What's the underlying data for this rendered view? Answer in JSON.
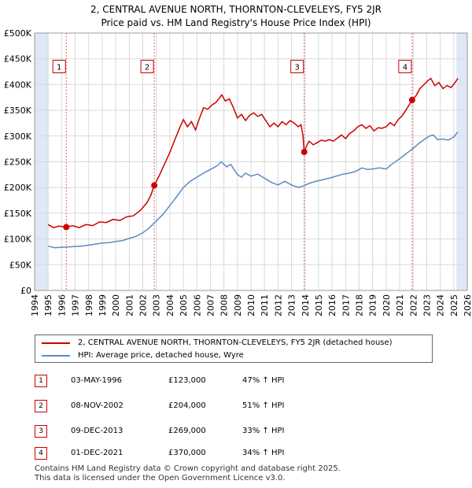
{
  "title_line1": "2, CENTRAL AVENUE NORTH, THORNTON-CLEVELEYS, FY5 2JR",
  "title_line2": "Price paid vs. HM Land Registry's House Price Index (HPI)",
  "colors": {
    "price_line": "#cc0000",
    "hpi_line": "#5b8bc4",
    "vline": "#e06666",
    "shade": "#dfe8f5",
    "grid": "#d9d9d9"
  },
  "chart_data": {
    "type": "line",
    "xlim": [
      1994,
      2026
    ],
    "ylim": [
      0,
      500000
    ],
    "x_ticks": [
      1994,
      1995,
      1996,
      1997,
      1998,
      1999,
      2000,
      2001,
      2002,
      2003,
      2004,
      2005,
      2006,
      2007,
      2008,
      2009,
      2010,
      2011,
      2012,
      2013,
      2014,
      2015,
      2016,
      2017,
      2018,
      2019,
      2020,
      2021,
      2022,
      2023,
      2024,
      2025,
      2026
    ],
    "y_ticks": [
      0,
      50000,
      100000,
      150000,
      200000,
      250000,
      300000,
      350000,
      400000,
      450000,
      500000
    ],
    "y_tick_labels": [
      "£0",
      "£50K",
      "£100K",
      "£150K",
      "£200K",
      "£250K",
      "£300K",
      "£350K",
      "£400K",
      "£450K",
      "£500K"
    ],
    "shaded_ranges": [
      [
        1994,
        1995.0
      ],
      [
        2025.2,
        2026
      ]
    ],
    "series": [
      {
        "name": "2, CENTRAL AVENUE NORTH, THORNTON-CLEVELEYS, FY5 2JR (detached house)",
        "color": "#cc0000",
        "points": [
          [
            1995.0,
            128000
          ],
          [
            1995.4,
            122000
          ],
          [
            1995.8,
            125000
          ],
          [
            1996.34,
            123000
          ],
          [
            1996.8,
            126000
          ],
          [
            1997.3,
            122000
          ],
          [
            1997.8,
            128000
          ],
          [
            1998.3,
            126000
          ],
          [
            1998.8,
            133000
          ],
          [
            1999.3,
            132000
          ],
          [
            1999.8,
            138000
          ],
          [
            2000.3,
            136000
          ],
          [
            2000.8,
            143000
          ],
          [
            2001.3,
            145000
          ],
          [
            2001.8,
            155000
          ],
          [
            2002.3,
            170000
          ],
          [
            2002.6,
            185000
          ],
          [
            2002.85,
            204000
          ],
          [
            2003.2,
            222000
          ],
          [
            2003.6,
            245000
          ],
          [
            2004.0,
            268000
          ],
          [
            2004.4,
            295000
          ],
          [
            2004.8,
            320000
          ],
          [
            2005.0,
            332000
          ],
          [
            2005.3,
            318000
          ],
          [
            2005.6,
            328000
          ],
          [
            2005.9,
            312000
          ],
          [
            2006.2,
            335000
          ],
          [
            2006.5,
            355000
          ],
          [
            2006.8,
            352000
          ],
          [
            2007.1,
            360000
          ],
          [
            2007.4,
            365000
          ],
          [
            2007.7,
            375000
          ],
          [
            2007.85,
            380000
          ],
          [
            2008.1,
            368000
          ],
          [
            2008.4,
            372000
          ],
          [
            2008.7,
            355000
          ],
          [
            2009.0,
            335000
          ],
          [
            2009.3,
            342000
          ],
          [
            2009.6,
            330000
          ],
          [
            2009.9,
            340000
          ],
          [
            2010.2,
            345000
          ],
          [
            2010.5,
            338000
          ],
          [
            2010.8,
            342000
          ],
          [
            2011.1,
            330000
          ],
          [
            2011.4,
            318000
          ],
          [
            2011.7,
            325000
          ],
          [
            2012.0,
            318000
          ],
          [
            2012.3,
            328000
          ],
          [
            2012.6,
            322000
          ],
          [
            2012.9,
            330000
          ],
          [
            2013.2,
            325000
          ],
          [
            2013.5,
            318000
          ],
          [
            2013.7,
            322000
          ],
          [
            2013.85,
            300000
          ],
          [
            2013.94,
            269000
          ],
          [
            2014.1,
            280000
          ],
          [
            2014.3,
            290000
          ],
          [
            2014.6,
            283000
          ],
          [
            2014.9,
            287000
          ],
          [
            2015.2,
            292000
          ],
          [
            2015.5,
            290000
          ],
          [
            2015.8,
            293000
          ],
          [
            2016.1,
            290000
          ],
          [
            2016.4,
            296000
          ],
          [
            2016.7,
            302000
          ],
          [
            2017.0,
            295000
          ],
          [
            2017.3,
            305000
          ],
          [
            2017.6,
            310000
          ],
          [
            2017.9,
            318000
          ],
          [
            2018.2,
            322000
          ],
          [
            2018.5,
            315000
          ],
          [
            2018.8,
            320000
          ],
          [
            2019.1,
            310000
          ],
          [
            2019.4,
            316000
          ],
          [
            2019.7,
            315000
          ],
          [
            2020.0,
            318000
          ],
          [
            2020.3,
            326000
          ],
          [
            2020.6,
            320000
          ],
          [
            2020.9,
            332000
          ],
          [
            2021.2,
            340000
          ],
          [
            2021.5,
            352000
          ],
          [
            2021.92,
            370000
          ],
          [
            2022.2,
            378000
          ],
          [
            2022.5,
            392000
          ],
          [
            2022.8,
            400000
          ],
          [
            2023.1,
            408000
          ],
          [
            2023.3,
            412000
          ],
          [
            2023.6,
            398000
          ],
          [
            2023.9,
            404000
          ],
          [
            2024.2,
            392000
          ],
          [
            2024.5,
            398000
          ],
          [
            2024.8,
            394000
          ],
          [
            2025.1,
            404000
          ],
          [
            2025.3,
            412000
          ]
        ]
      },
      {
        "name": "HPI: Average price, detached house, Wyre",
        "color": "#5b8bc4",
        "points": [
          [
            1995.0,
            86000
          ],
          [
            1995.5,
            83000
          ],
          [
            1996.0,
            84000
          ],
          [
            1996.5,
            84500
          ],
          [
            1997.0,
            85500
          ],
          [
            1997.5,
            86000
          ],
          [
            1998.0,
            88000
          ],
          [
            1998.5,
            90000
          ],
          [
            1999.0,
            92000
          ],
          [
            1999.5,
            93000
          ],
          [
            2000.0,
            95000
          ],
          [
            2000.5,
            97000
          ],
          [
            2001.0,
            101000
          ],
          [
            2001.5,
            105000
          ],
          [
            2002.0,
            112000
          ],
          [
            2002.5,
            122000
          ],
          [
            2003.0,
            135000
          ],
          [
            2003.5,
            148000
          ],
          [
            2004.0,
            165000
          ],
          [
            2004.5,
            182000
          ],
          [
            2005.0,
            200000
          ],
          [
            2005.5,
            212000
          ],
          [
            2006.0,
            220000
          ],
          [
            2006.5,
            228000
          ],
          [
            2007.0,
            235000
          ],
          [
            2007.5,
            242000
          ],
          [
            2007.8,
            250000
          ],
          [
            2008.2,
            240000
          ],
          [
            2008.5,
            245000
          ],
          [
            2009.0,
            225000
          ],
          [
            2009.3,
            220000
          ],
          [
            2009.6,
            228000
          ],
          [
            2010.0,
            222000
          ],
          [
            2010.5,
            226000
          ],
          [
            2011.0,
            218000
          ],
          [
            2011.5,
            210000
          ],
          [
            2012.0,
            205000
          ],
          [
            2012.5,
            212000
          ],
          [
            2013.0,
            205000
          ],
          [
            2013.5,
            200000
          ],
          [
            2013.9,
            203000
          ],
          [
            2014.3,
            208000
          ],
          [
            2014.8,
            212000
          ],
          [
            2015.3,
            215000
          ],
          [
            2015.8,
            218000
          ],
          [
            2016.3,
            222000
          ],
          [
            2016.8,
            226000
          ],
          [
            2017.3,
            228000
          ],
          [
            2017.8,
            232000
          ],
          [
            2018.2,
            238000
          ],
          [
            2018.6,
            235000
          ],
          [
            2019.0,
            236000
          ],
          [
            2019.5,
            238000
          ],
          [
            2020.0,
            236000
          ],
          [
            2020.4,
            245000
          ],
          [
            2020.8,
            252000
          ],
          [
            2021.2,
            260000
          ],
          [
            2021.6,
            268000
          ],
          [
            2022.0,
            276000
          ],
          [
            2022.4,
            285000
          ],
          [
            2022.8,
            293000
          ],
          [
            2023.2,
            300000
          ],
          [
            2023.5,
            302000
          ],
          [
            2023.8,
            293000
          ],
          [
            2024.2,
            294000
          ],
          [
            2024.6,
            292000
          ],
          [
            2025.0,
            298000
          ],
          [
            2025.3,
            308000
          ]
        ]
      }
    ],
    "sales": [
      {
        "label": "1",
        "x": 1996.34,
        "y": 123000,
        "date": "03-MAY-1996",
        "price": "£123,000",
        "hpi": "47% ↑ HPI"
      },
      {
        "label": "2",
        "x": 2002.85,
        "y": 204000,
        "date": "08-NOV-2002",
        "price": "£204,000",
        "hpi": "51% ↑ HPI"
      },
      {
        "label": "3",
        "x": 2013.94,
        "y": 269000,
        "date": "09-DEC-2013",
        "price": "£269,000",
        "hpi": "33% ↑ HPI"
      },
      {
        "label": "4",
        "x": 2021.92,
        "y": 370000,
        "date": "01-DEC-2021",
        "price": "£370,000",
        "hpi": "34% ↑ HPI"
      }
    ],
    "marker_box_value": 435000
  },
  "legend": {
    "price_label": "2, CENTRAL AVENUE NORTH, THORNTON-CLEVELEYS, FY5 2JR (detached house)",
    "hpi_label": "HPI: Average price, detached house, Wyre"
  },
  "footer_line1": "Contains HM Land Registry data © Crown copyright and database right 2025.",
  "footer_line2": "This data is licensed under the Open Government Licence v3.0."
}
